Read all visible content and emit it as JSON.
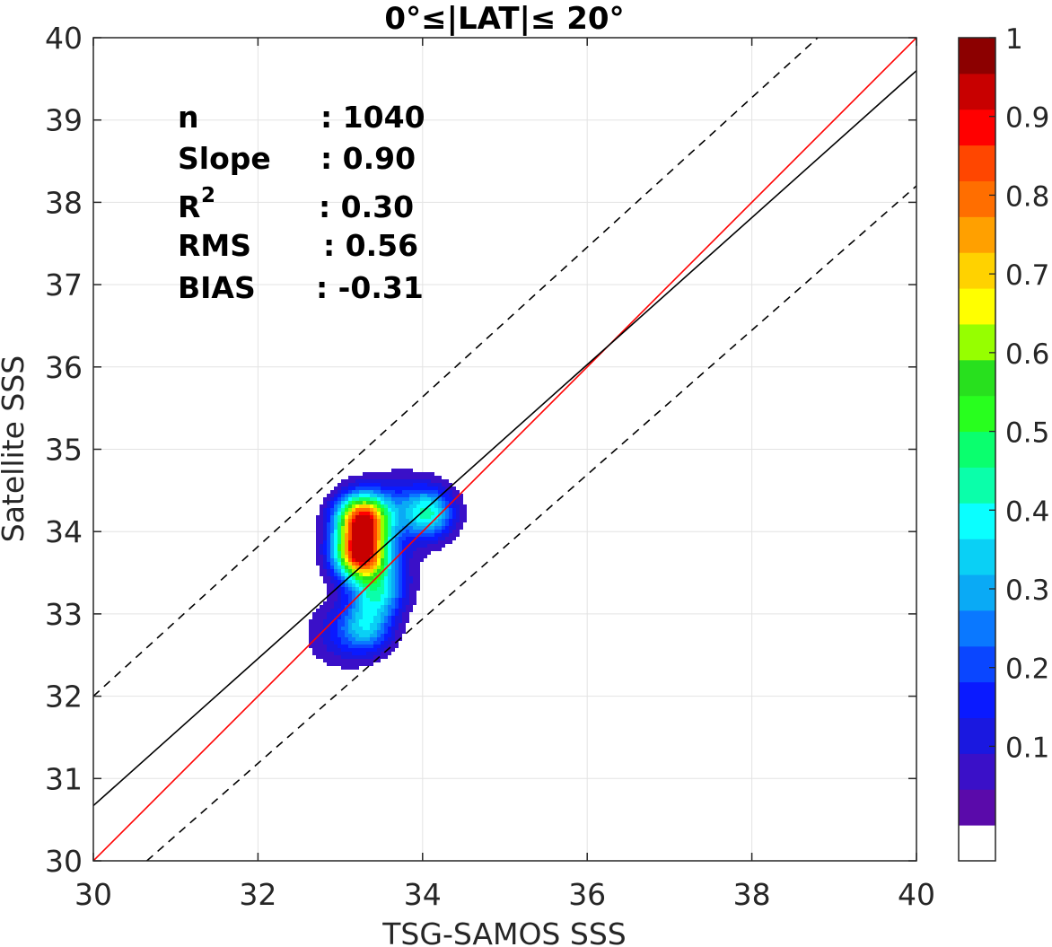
{
  "chart_data": {
    "type": "heatmap",
    "subtype": "scatter-density contour",
    "title": "0°≤|LAT|≤ 20°",
    "xlabel": "TSG-SAMOS SSS",
    "ylabel": "Satellite SSS",
    "xlim": [
      30,
      40
    ],
    "ylim": [
      30,
      40
    ],
    "xticks": [
      "30",
      "32",
      "34",
      "36",
      "38",
      "40"
    ],
    "yticks": [
      "30",
      "31",
      "32",
      "33",
      "34",
      "35",
      "36",
      "37",
      "38",
      "39",
      "40"
    ],
    "grid": true,
    "stats": [
      {
        "label": "n",
        "value": ": 1040"
      },
      {
        "label": "Slope",
        "value": ": 0.90"
      },
      {
        "label": "R",
        "sup": "2",
        "value": ": 0.30"
      },
      {
        "label": "RMS",
        "value": ": 0.56"
      },
      {
        "label": "BIAS",
        "value": ": -0.31"
      }
    ],
    "lines": [
      {
        "role": "one-to-one",
        "color": "#ff0000",
        "style": "solid",
        "points": [
          [
            30,
            30
          ],
          [
            40,
            40
          ]
        ]
      },
      {
        "role": "regression",
        "color": "#000000",
        "style": "solid",
        "points": [
          [
            30,
            30.67
          ],
          [
            40,
            39.6
          ]
        ]
      },
      {
        "role": "upper-bound",
        "color": "#000000",
        "style": "dashed",
        "points": [
          [
            30,
            32.0
          ],
          [
            38.8,
            40.0
          ]
        ]
      },
      {
        "role": "lower-bound",
        "color": "#000000",
        "style": "dashed",
        "points": [
          [
            30.65,
            30.0
          ],
          [
            40.0,
            38.2
          ]
        ]
      }
    ],
    "density_peaks": [
      {
        "x": 33.27,
        "y": 34.15,
        "value": 0.95
      },
      {
        "x": 33.25,
        "y": 33.72,
        "value": 0.95
      },
      {
        "x": 34.07,
        "y": 34.22,
        "value": 0.42
      },
      {
        "x": 33.32,
        "y": 32.83,
        "value": 0.3
      },
      {
        "x": 33.45,
        "y": 33.25,
        "value": 0.35
      }
    ],
    "colorbar": {
      "ticks": [
        "0.1",
        "0.2",
        "0.3",
        "0.4",
        "0.5",
        "0.6",
        "0.7",
        "0.8",
        "0.9",
        "1"
      ],
      "levels": [
        0,
        0.05,
        0.1,
        0.15,
        0.2,
        0.25,
        0.3,
        0.35,
        0.4,
        0.45,
        0.5,
        0.55,
        0.6,
        0.65,
        0.7,
        0.75,
        0.8,
        0.85,
        0.9,
        0.95,
        1.0
      ],
      "colors": [
        "#ffffff",
        "#5a0aaa",
        "#3a10c8",
        "#1a18e0",
        "#0a1aff",
        "#0a46ff",
        "#0a78ff",
        "#0aaaf5",
        "#0ad0f5",
        "#0affff",
        "#0affaa",
        "#0aff6e",
        "#28ff1e",
        "#28e01e",
        "#96ff00",
        "#ffff00",
        "#ffd200",
        "#ffa000",
        "#ff6e00",
        "#ff4600",
        "#ff0000",
        "#c80000",
        "#8c0000"
      ]
    }
  }
}
